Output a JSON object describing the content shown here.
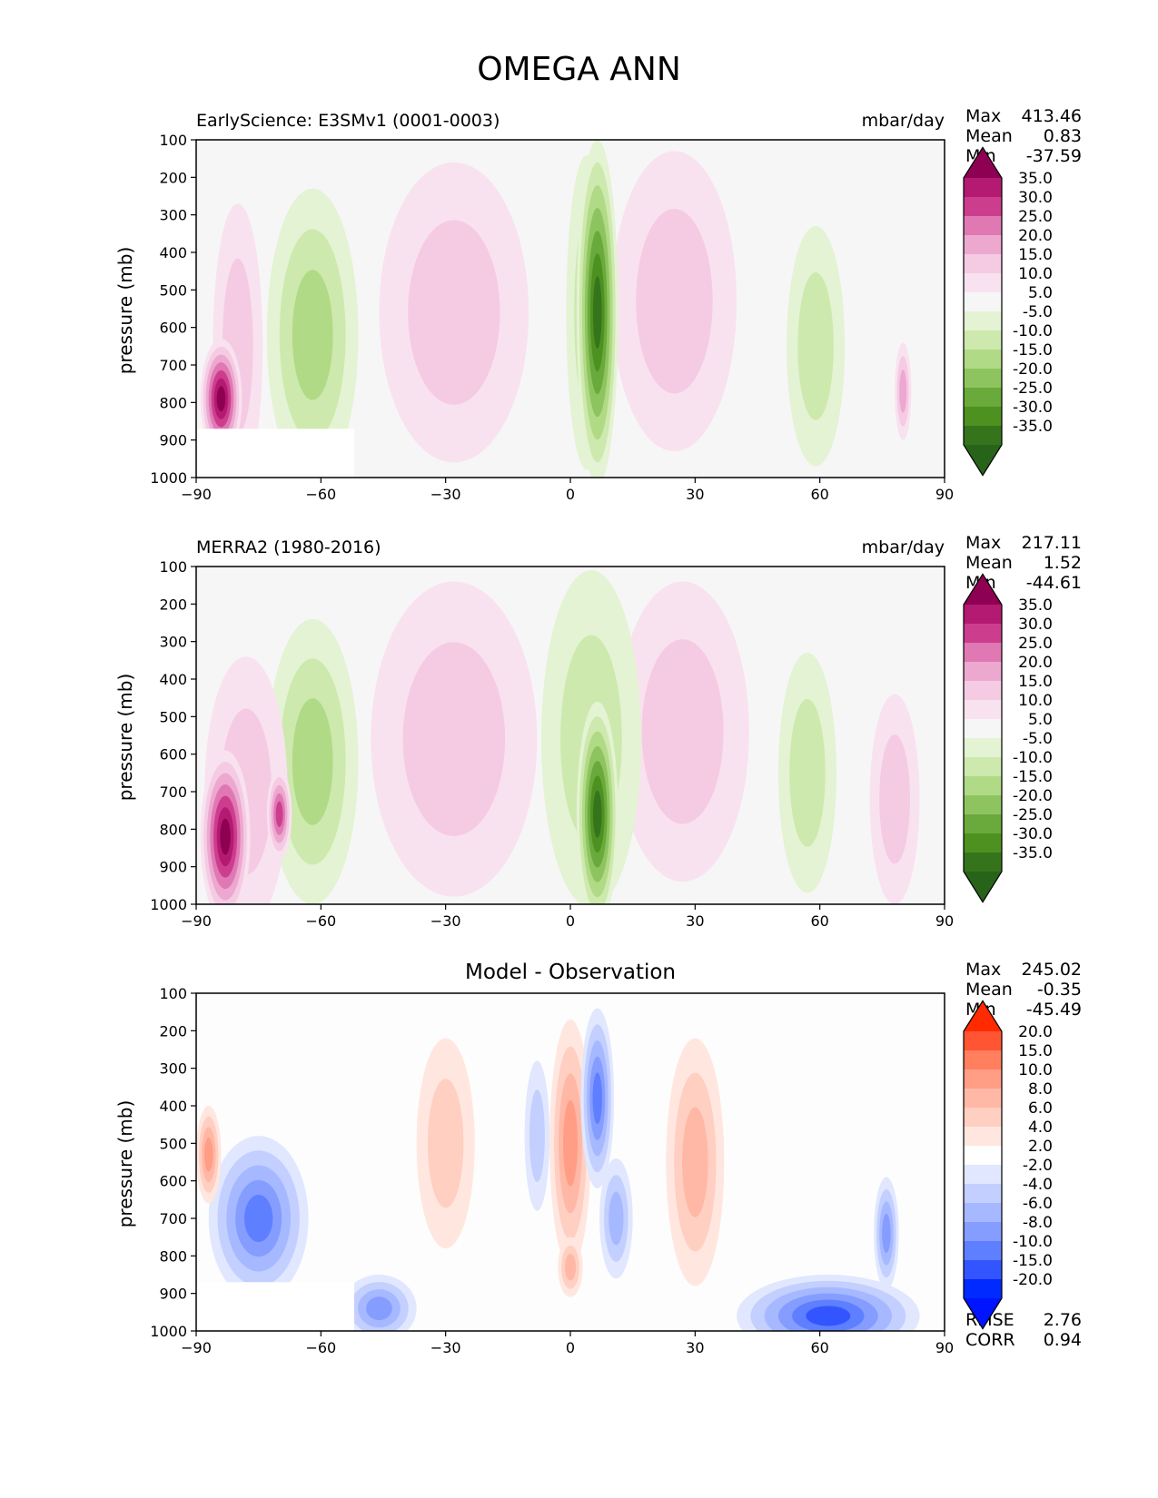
{
  "figure_title": "OMEGA ANN",
  "chart_data": [
    {
      "type": "contour",
      "panel_title_left": "EarlyScience: E3SMv1 (0001-0003)",
      "panel_title_right": "mbar/day",
      "ylabel": "pressure (mb)",
      "xlabel": "",
      "xlim": [
        -90,
        90
      ],
      "ylim": [
        1000,
        100
      ],
      "x_ticks": [
        "−90",
        "−60",
        "−30",
        "0",
        "30",
        "60",
        "90"
      ],
      "y_ticks": [
        "100",
        "200",
        "300",
        "400",
        "500",
        "600",
        "700",
        "800",
        "900",
        "1000"
      ],
      "stats": {
        "max_label": "Max",
        "max": "413.46",
        "mean_label": "Mean",
        "mean": "0.83",
        "min_label": "Min",
        "min": "-37.59"
      },
      "colorbar_levels": [
        "35.0",
        "30.0",
        "25.0",
        "20.0",
        "15.0",
        "10.0",
        "5.0",
        "-5.0",
        "-10.0",
        "-15.0",
        "-20.0",
        "-25.0",
        "-30.0",
        "-35.0"
      ],
      "colorbar_colors": [
        "#8e0152",
        "#b41a72",
        "#cd3d8e",
        "#df78b3",
        "#eda8d0",
        "#f5cbe4",
        "#f9e2ef",
        "#f6f6f6",
        "#e3f3d3",
        "#cde9ad",
        "#b0da86",
        "#8ec45f",
        "#6aa93c",
        "#4d9221",
        "#36741c",
        "#276419"
      ]
    },
    {
      "type": "contour",
      "panel_title_left": "MERRA2 (1980-2016)",
      "panel_title_right": "mbar/day",
      "ylabel": "pressure (mb)",
      "xlabel": "",
      "xlim": [
        -90,
        90
      ],
      "ylim": [
        1000,
        100
      ],
      "x_ticks": [
        "−90",
        "−60",
        "−30",
        "0",
        "30",
        "60",
        "90"
      ],
      "y_ticks": [
        "100",
        "200",
        "300",
        "400",
        "500",
        "600",
        "700",
        "800",
        "900",
        "1000"
      ],
      "stats": {
        "max_label": "Max",
        "max": "217.11",
        "mean_label": "Mean",
        "mean": "1.52",
        "min_label": "Min",
        "min": "-44.61"
      },
      "colorbar_levels": [
        "35.0",
        "30.0",
        "25.0",
        "20.0",
        "15.0",
        "10.0",
        "5.0",
        "-5.0",
        "-10.0",
        "-15.0",
        "-20.0",
        "-25.0",
        "-30.0",
        "-35.0"
      ],
      "colorbar_colors": [
        "#8e0152",
        "#b41a72",
        "#cd3d8e",
        "#df78b3",
        "#eda8d0",
        "#f5cbe4",
        "#f9e2ef",
        "#f6f6f6",
        "#e3f3d3",
        "#cde9ad",
        "#b0da86",
        "#8ec45f",
        "#6aa93c",
        "#4d9221",
        "#36741c",
        "#276419"
      ]
    },
    {
      "type": "contour",
      "panel_title_center": "Model - Observation",
      "ylabel": "pressure (mb)",
      "xlabel": "",
      "xlim": [
        -90,
        90
      ],
      "ylim": [
        1000,
        100
      ],
      "x_ticks": [
        "−90",
        "−60",
        "−30",
        "0",
        "30",
        "60",
        "90"
      ],
      "y_ticks": [
        "100",
        "200",
        "300",
        "400",
        "500",
        "600",
        "700",
        "800",
        "900",
        "1000"
      ],
      "stats": {
        "max_label": "Max",
        "max": "245.02",
        "mean_label": "Mean",
        "mean": "-0.35",
        "min_label": "Min",
        "min": "-45.49"
      },
      "metrics": {
        "rmse_label": "RMSE",
        "rmse": "2.76",
        "corr_label": "CORR",
        "corr": "0.94"
      },
      "colorbar_levels": [
        "20.0",
        "15.0",
        "10.0",
        "8.0",
        "6.0",
        "4.0",
        "2.0",
        "-2.0",
        "-4.0",
        "-6.0",
        "-8.0",
        "-10.0",
        "-15.0",
        "-20.0"
      ],
      "colorbar_colors": [
        "#ff2a00",
        "#ff5533",
        "#ff7f5e",
        "#ff9d85",
        "#ffb8a6",
        "#ffcfc2",
        "#ffe7e0",
        "#ffffff",
        "#e0e7ff",
        "#c2cfff",
        "#a6b8ff",
        "#859dff",
        "#5e7fff",
        "#3355ff",
        "#002aff",
        "#0014ff"
      ]
    }
  ]
}
